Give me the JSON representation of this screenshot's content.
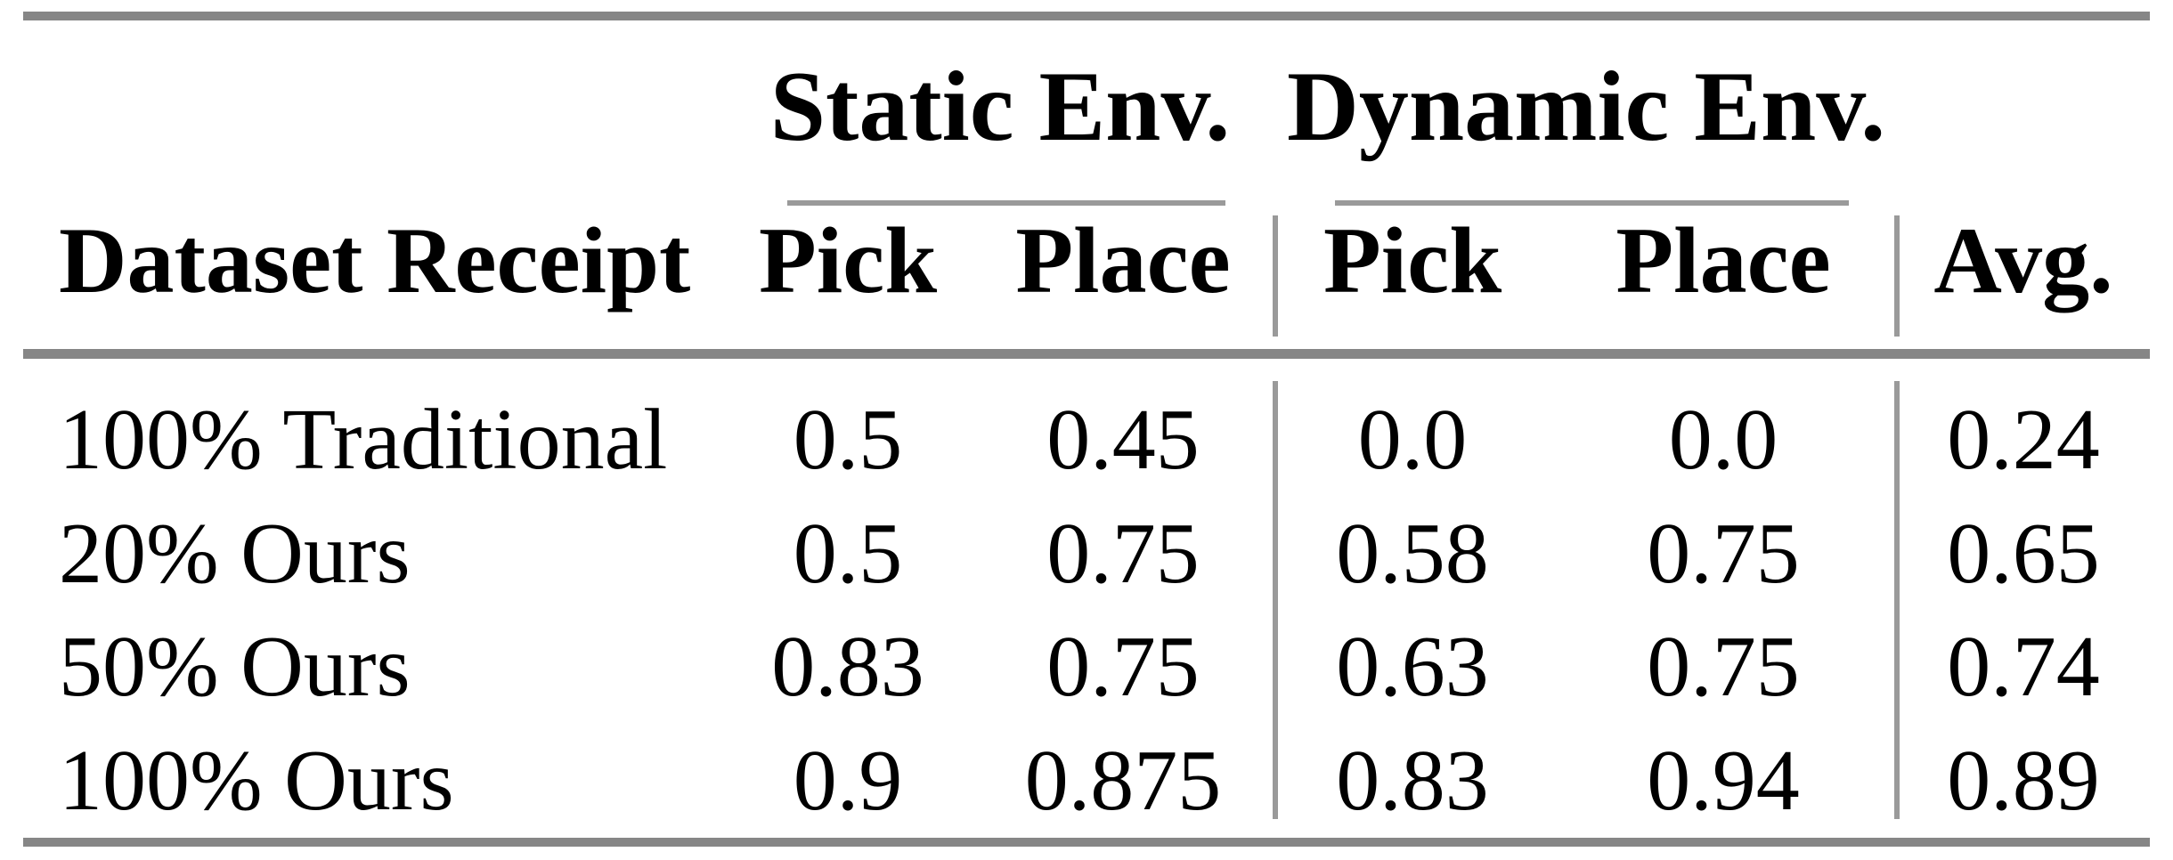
{
  "table": {
    "groups": [
      {
        "label": "Static Env."
      },
      {
        "label": "Dynamic Env."
      }
    ],
    "columns": [
      "Dataset Receipt",
      "Pick",
      "Place",
      "Pick",
      "Place",
      "Avg."
    ],
    "rows": [
      [
        "100% Traditional",
        "0.5",
        "0.45",
        "0.0",
        "0.0",
        "0.24"
      ],
      [
        "20% Ours",
        "0.5",
        "0.75",
        "0.58",
        "0.75",
        "0.65"
      ],
      [
        "50% Ours",
        "0.83",
        "0.75",
        "0.63",
        "0.75",
        "0.74"
      ],
      [
        "100% Ours",
        "0.9",
        "0.875",
        "0.83",
        "0.94",
        "0.89"
      ]
    ],
    "colors": {
      "thick_rule": "#868686",
      "thin_rule": "#9a9a9a",
      "text": "#000000",
      "background": "#ffffff"
    }
  },
  "chart_data": {
    "type": "table",
    "title": "",
    "column_groups": [
      "",
      "Static Env.",
      "Static Env.",
      "Dynamic Env.",
      "Dynamic Env.",
      ""
    ],
    "columns": [
      "Dataset Receipt",
      "Pick",
      "Place",
      "Pick",
      "Place",
      "Avg."
    ],
    "rows": [
      [
        "100% Traditional",
        0.5,
        0.45,
        0.0,
        0.0,
        0.24
      ],
      [
        "20% Ours",
        0.5,
        0.75,
        0.58,
        0.75,
        0.65
      ],
      [
        "50% Ours",
        0.83,
        0.75,
        0.63,
        0.75,
        0.74
      ],
      [
        "100% Ours",
        0.9,
        0.875,
        0.83,
        0.94,
        0.89
      ]
    ]
  }
}
